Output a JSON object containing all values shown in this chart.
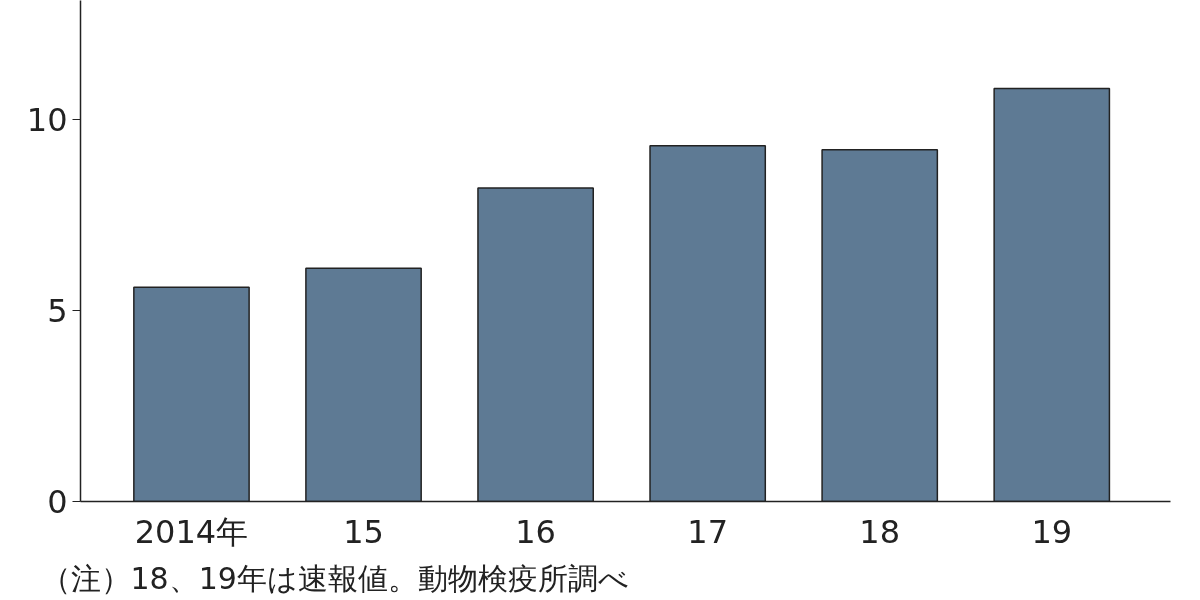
{
  "chart_data": {
    "type": "bar",
    "categories": [
      "2014年",
      "15",
      "16",
      "17",
      "18",
      "19"
    ],
    "values": [
      5.6,
      6.1,
      8.2,
      9.3,
      9.2,
      10.8
    ],
    "color": "#5e7a94",
    "ylim": [
      0,
      13.1
    ],
    "yticks": [
      0,
      5,
      10
    ],
    "grid": false,
    "annotations": [
      "（注）18、19年は速報値。動物検疫所調べ"
    ]
  }
}
